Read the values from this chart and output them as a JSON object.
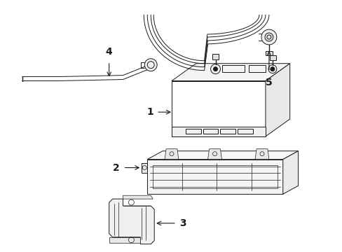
{
  "background_color": "#ffffff",
  "line_color": "#1a1a1a",
  "label_fontsize": 10,
  "fig_w": 4.89,
  "fig_h": 3.6,
  "dpi": 100
}
